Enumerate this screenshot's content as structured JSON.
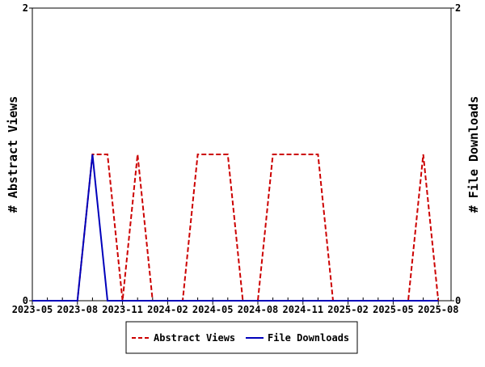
{
  "chart_data": {
    "type": "line",
    "title": "",
    "xlabel": "",
    "ylabel": "# Abstract Views",
    "y2label": "# File Downloads",
    "x": [
      "2023-05",
      "2023-06",
      "2023-07",
      "2023-08",
      "2023-09",
      "2023-10",
      "2023-11",
      "2023-12",
      "2024-01",
      "2024-02",
      "2024-03",
      "2024-04",
      "2024-05",
      "2024-06",
      "2024-07",
      "2024-08",
      "2024-09",
      "2024-10",
      "2024-11",
      "2024-12",
      "2025-01",
      "2025-02",
      "2025-03",
      "2025-04",
      "2025-05",
      "2025-06",
      "2025-07",
      "2025-08"
    ],
    "x_tick_labels": [
      "2023-05",
      "2023-08",
      "2023-11",
      "2024-02",
      "2024-05",
      "2024-08",
      "2024-11",
      "2025-02",
      "2025-05",
      "2025-08"
    ],
    "ylim": [
      0,
      2
    ],
    "y_tick_labels": [
      "0",
      "2"
    ],
    "y2_tick_labels": [
      "0",
      "2"
    ],
    "series": [
      {
        "name": "Abstract Views",
        "color": "#cc0000",
        "dash": "dashed",
        "values": [
          0,
          0,
          0,
          0,
          1,
          1,
          0,
          1,
          0,
          0,
          0,
          1,
          1,
          1,
          0,
          0,
          1,
          1,
          1,
          1,
          0,
          0,
          0,
          0,
          0,
          0,
          1,
          0
        ]
      },
      {
        "name": "File Downloads",
        "color": "#0000bb",
        "dash": "solid",
        "values": [
          0,
          0,
          0,
          0,
          1,
          0,
          0,
          0,
          0,
          0,
          0,
          0,
          0,
          0,
          0,
          0,
          0,
          0,
          0,
          0,
          0,
          0,
          0,
          0,
          0,
          0,
          0,
          0
        ]
      }
    ],
    "legend": "bottom",
    "grid": false
  }
}
